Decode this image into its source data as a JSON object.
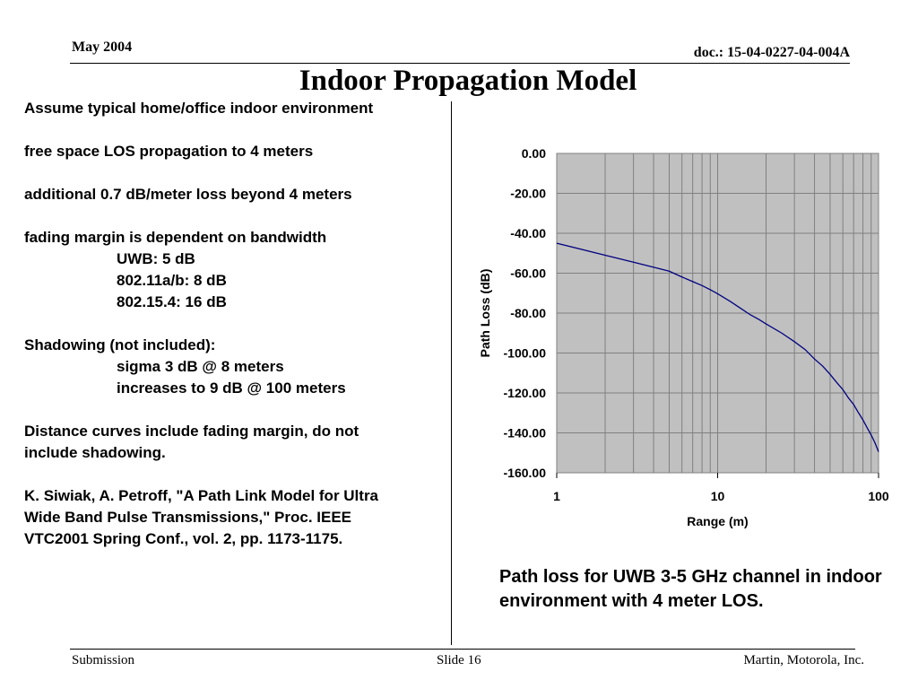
{
  "header": {
    "date": "May 2004",
    "doc": "doc.: 15-04-0227-04-004A"
  },
  "title": "Indoor Propagation Model",
  "body_lines": [
    {
      "text": "Assume typical home/office indoor environment",
      "indent": false
    },
    {
      "text": "",
      "indent": false
    },
    {
      "text": "free space LOS propagation to 4 meters",
      "indent": false
    },
    {
      "text": "",
      "indent": false
    },
    {
      "text": "additional 0.7 dB/meter loss beyond 4 meters",
      "indent": false
    },
    {
      "text": "",
      "indent": false
    },
    {
      "text": "fading margin is dependent on bandwidth",
      "indent": false
    },
    {
      "text": "UWB:  5 dB",
      "indent": true
    },
    {
      "text": "802.11a/b:  8 dB",
      "indent": true
    },
    {
      "text": "802.15.4:  16 dB",
      "indent": true
    },
    {
      "text": "",
      "indent": false
    },
    {
      "text": "Shadowing (not included):",
      "indent": false
    },
    {
      "text": "sigma 3 dB @ 8 meters",
      "indent": true
    },
    {
      "text": "increases to 9 dB @ 100 meters",
      "indent": true
    },
    {
      "text": "",
      "indent": false
    },
    {
      "text": "Distance curves include fading margin, do not",
      "indent": false
    },
    {
      "text": "include shadowing.",
      "indent": false
    },
    {
      "text": "",
      "indent": false
    },
    {
      "text": "K. Siwiak, A. Petroff, \"A Path Link Model for Ultra",
      "indent": false
    },
    {
      "text": "Wide Band Pulse Transmissions,\" Proc. IEEE",
      "indent": false
    },
    {
      "text": "VTC2001 Spring Conf., vol. 2, pp. 1173-1175.",
      "indent": false
    }
  ],
  "caption": "Path loss for UWB 3-5 GHz channel in indoor environment with 4 meter LOS.",
  "footer": {
    "left": "Submission",
    "center": "Slide 16",
    "right": "Martin, Motorola, Inc."
  },
  "chart_data": {
    "type": "line",
    "xlabel": "Range (m)",
    "ylabel": "Path Loss (dB)",
    "x_scale": "log",
    "xlim": [
      1,
      100
    ],
    "ylim": [
      -160,
      0
    ],
    "x_ticks": [
      "1",
      "10",
      "100"
    ],
    "y_ticks": [
      "0.00",
      "-20.00",
      "-40.00",
      "-60.00",
      "-80.00",
      "-100.00",
      "-120.00",
      "-140.00",
      "-160.00"
    ],
    "plot_background": "#c0c0c0",
    "line_color": "#000080",
    "grid": true,
    "series": [
      {
        "x": [
          1,
          2,
          3,
          4,
          5,
          6,
          7,
          8,
          9,
          10,
          12,
          14,
          16,
          18,
          20,
          25,
          30,
          35,
          40,
          45,
          50,
          55,
          60,
          65,
          70,
          75,
          80,
          85,
          90,
          95,
          100
        ],
        "y": [
          -45.0,
          -51.0,
          -54.5,
          -57.0,
          -59.0,
          -61.9,
          -64.2,
          -66.2,
          -68.3,
          -70.3,
          -74.2,
          -77.8,
          -80.9,
          -83.1,
          -85.4,
          -90.0,
          -94.3,
          -98.3,
          -103.0,
          -106.6,
          -110.7,
          -114.8,
          -118.3,
          -122.5,
          -125.8,
          -129.9,
          -133.5,
          -137.5,
          -141.1,
          -145.0,
          -149.5
        ]
      }
    ]
  }
}
